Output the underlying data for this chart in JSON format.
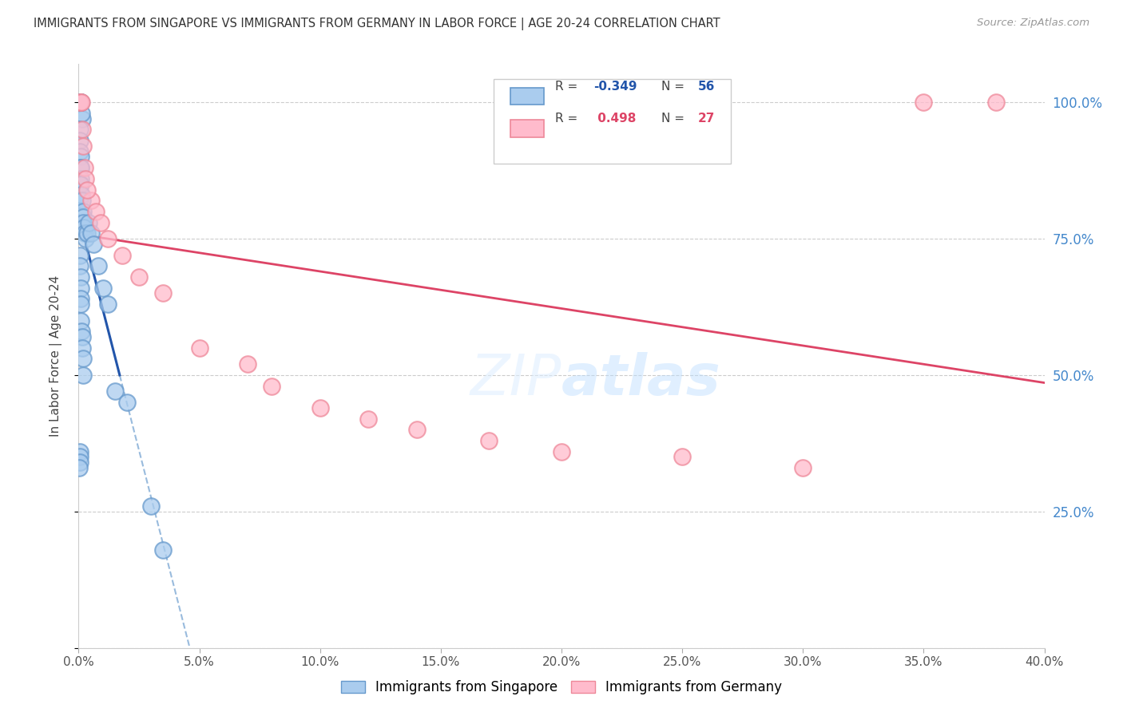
{
  "title": "IMMIGRANTS FROM SINGAPORE VS IMMIGRANTS FROM GERMANY IN LABOR FORCE | AGE 20-24 CORRELATION CHART",
  "source": "Source: ZipAtlas.com",
  "ylabel": "In Labor Force | Age 20-24",
  "x_ticks": [
    0,
    5,
    10,
    15,
    20,
    25,
    30,
    35,
    40
  ],
  "x_tick_labels": [
    "0.0%",
    "5.0%",
    "10.0%",
    "15.0%",
    "20.0%",
    "25.0%",
    "30.0%",
    "35.0%",
    "40.0%"
  ],
  "y_ticks": [
    0,
    25,
    50,
    75,
    100
  ],
  "y_tick_labels_right": [
    "",
    "25.0%",
    "50.0%",
    "75.0%",
    "100.0%"
  ],
  "xlim": [
    0,
    40
  ],
  "ylim": [
    0,
    107
  ],
  "legend_r1": "R = -0.349",
  "legend_n1": "N = 56",
  "legend_r2": "R =  0.498",
  "legend_n2": "N = 27",
  "sg_color_face": "#aaccee",
  "sg_color_edge": "#6699cc",
  "de_color_face": "#ffbbcc",
  "de_color_edge": "#ee8899",
  "sg_trend_color": "#2255aa",
  "de_trend_color": "#dd4466",
  "dash_color": "#99bbdd",
  "watermark": "ZIPatlas",
  "sg_x": [
    0.05,
    0.05,
    0.15,
    0.12,
    0.08,
    0.09,
    0.1,
    0.07,
    0.06,
    0.04,
    0.05,
    0.06,
    0.05,
    0.07,
    0.08,
    0.1,
    0.08,
    0.06,
    0.05,
    0.05,
    0.1,
    0.12,
    0.15,
    0.18,
    0.2,
    0.2,
    0.22,
    0.25,
    0.3,
    0.35,
    0.4,
    0.5,
    0.6,
    0.8,
    1.0,
    1.2,
    0.05,
    0.06,
    0.07,
    0.08,
    0.09,
    0.1,
    0.1,
    0.12,
    0.14,
    0.15,
    0.18,
    0.2,
    1.5,
    2.0,
    3.0,
    3.5,
    0.05,
    0.06,
    0.04,
    0.03
  ],
  "sg_y": [
    100,
    100,
    97,
    98,
    100,
    100,
    100,
    100,
    100,
    100,
    95,
    93,
    91,
    90,
    88,
    88,
    86,
    85,
    83,
    82,
    85,
    83,
    82,
    80,
    79,
    78,
    77,
    76,
    75,
    76,
    78,
    76,
    74,
    70,
    66,
    63,
    72,
    70,
    68,
    66,
    64,
    63,
    60,
    58,
    57,
    55,
    53,
    50,
    47,
    45,
    26,
    18,
    36,
    35,
    34,
    33
  ],
  "de_x": [
    0.05,
    0.08,
    0.12,
    0.15,
    0.2,
    0.25,
    0.3,
    0.5,
    0.7,
    0.9,
    1.2,
    1.8,
    2.5,
    3.5,
    5.0,
    7.0,
    8.0,
    10.0,
    12.0,
    14.0,
    17.0,
    20.0,
    25.0,
    30.0,
    35.0,
    38.0,
    0.35
  ],
  "de_y": [
    100,
    100,
    100,
    95,
    92,
    88,
    86,
    82,
    80,
    78,
    75,
    72,
    68,
    65,
    55,
    52,
    48,
    44,
    42,
    40,
    38,
    36,
    35,
    33,
    100,
    100,
    84
  ]
}
